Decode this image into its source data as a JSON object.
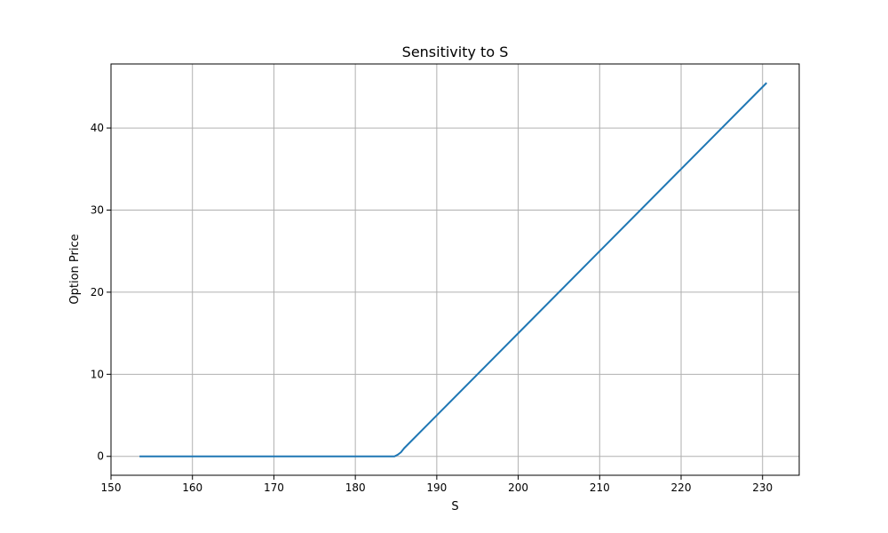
{
  "chart_data": {
    "type": "line",
    "title": "Sensitivity to S",
    "xlabel": "S",
    "ylabel": "Option Price",
    "xlim": [
      150,
      234.5
    ],
    "ylim": [
      -2.3,
      47.8
    ],
    "xticks": [
      150,
      160,
      170,
      180,
      190,
      200,
      210,
      220,
      230
    ],
    "yticks": [
      0,
      10,
      20,
      30,
      40
    ],
    "grid": true,
    "series": [
      {
        "color": "#1f77b4",
        "x": [
          153.5,
          160,
          170,
          180,
          184.8,
          185.2,
          185.6,
          186.0,
          190,
          200,
          210,
          220,
          230.5
        ],
        "y": [
          0,
          0,
          0,
          0,
          0,
          0.2,
          0.5,
          1.0,
          5.0,
          15.0,
          25.0,
          35.0,
          45.5
        ]
      }
    ]
  },
  "colors": {
    "line": "#1f77b4",
    "grid": "#b0b0b0",
    "axis": "#000000",
    "background": "#ffffff"
  }
}
